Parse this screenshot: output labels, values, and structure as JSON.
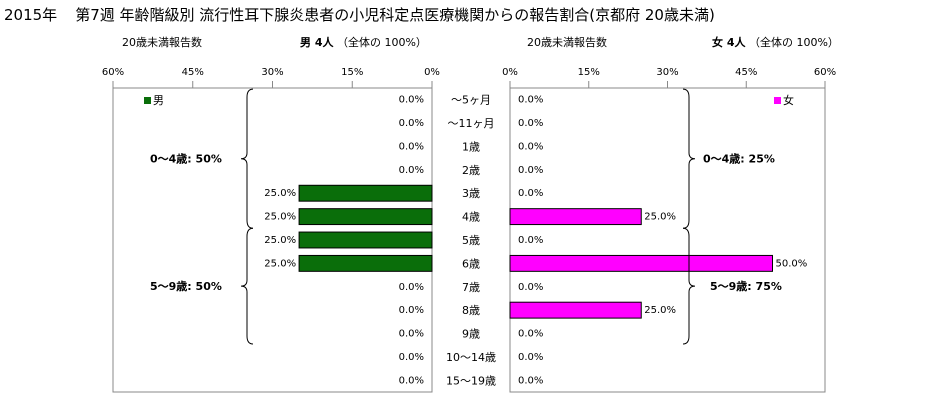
{
  "title": {
    "year": "2015年",
    "text": "第7週 年齢階級別 流行性耳下腺炎患者の小児科定点医療機関からの報告割合(京都府 20歳未満)"
  },
  "male_header": {
    "report_label": "20歳未満報告数",
    "count_label": "男  4人",
    "share_label": "（全体の  100%）"
  },
  "female_header": {
    "report_label": "20歳未満報告数",
    "count_label": "女  4人",
    "share_label": "（全体の  100%）"
  },
  "chart_data": {
    "type": "bar",
    "categories": [
      "～5ヶ月",
      "～11ヶ月",
      "1歳",
      "2歳",
      "3歳",
      "4歳",
      "5歳",
      "6歳",
      "7歳",
      "8歳",
      "9歳",
      "10～14歳",
      "15～19歳"
    ],
    "series": [
      {
        "name": "男",
        "values": [
          0,
          0,
          0,
          0,
          25,
          25,
          25,
          25,
          0,
          0,
          0,
          0,
          0
        ],
        "labels": [
          "0.0%",
          "0.0%",
          "0.0%",
          "0.0%",
          "25.0%",
          "25.0%",
          "25.0%",
          "25.0%",
          "0.0%",
          "0.0%",
          "0.0%",
          "0.0%",
          "0.0%"
        ],
        "color": "#0a6e0a"
      },
      {
        "name": "女",
        "values": [
          0,
          0,
          0,
          0,
          0,
          25,
          0,
          50,
          0,
          25,
          0,
          0,
          0
        ],
        "labels": [
          "0.0%",
          "0.0%",
          "0.0%",
          "0.0%",
          "0.0%",
          "25.0%",
          "0.0%",
          "50.0%",
          "0.0%",
          "25.0%",
          "0.0%",
          "0.0%",
          "0.0%"
        ],
        "color": "#ff00ff"
      }
    ],
    "male_axis_ticks": [
      "60%",
      "45%",
      "30%",
      "15%",
      "0%"
    ],
    "female_axis_ticks": [
      "0%",
      "15%",
      "30%",
      "45%",
      "60%"
    ],
    "xlim": [
      0,
      60
    ],
    "male_groups": [
      "0～4歳: 50%",
      "5～9歳: 50%"
    ],
    "female_groups": [
      "0～4歳: 25%",
      "5～9歳: 75%"
    ]
  }
}
